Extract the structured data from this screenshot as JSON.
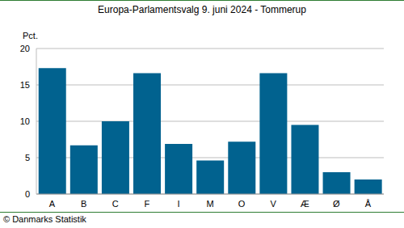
{
  "chart_data": {
    "type": "bar",
    "title": "Europa-Parlamentsvalg 9. juni 2024 - Tommerup",
    "y_label": "Pct.",
    "source": "© Danmarks Statistik",
    "categories": [
      "A",
      "B",
      "C",
      "F",
      "I",
      "M",
      "O",
      "V",
      "Æ",
      "Ø",
      "Å"
    ],
    "values": [
      17.3,
      6.7,
      10.0,
      16.6,
      6.9,
      4.6,
      7.2,
      16.6,
      9.5,
      3.0,
      2.0
    ],
    "color": "#01628f",
    "ylim": [
      0,
      20
    ],
    "yticks": [
      0,
      5,
      10,
      15,
      20
    ],
    "grid": true
  }
}
